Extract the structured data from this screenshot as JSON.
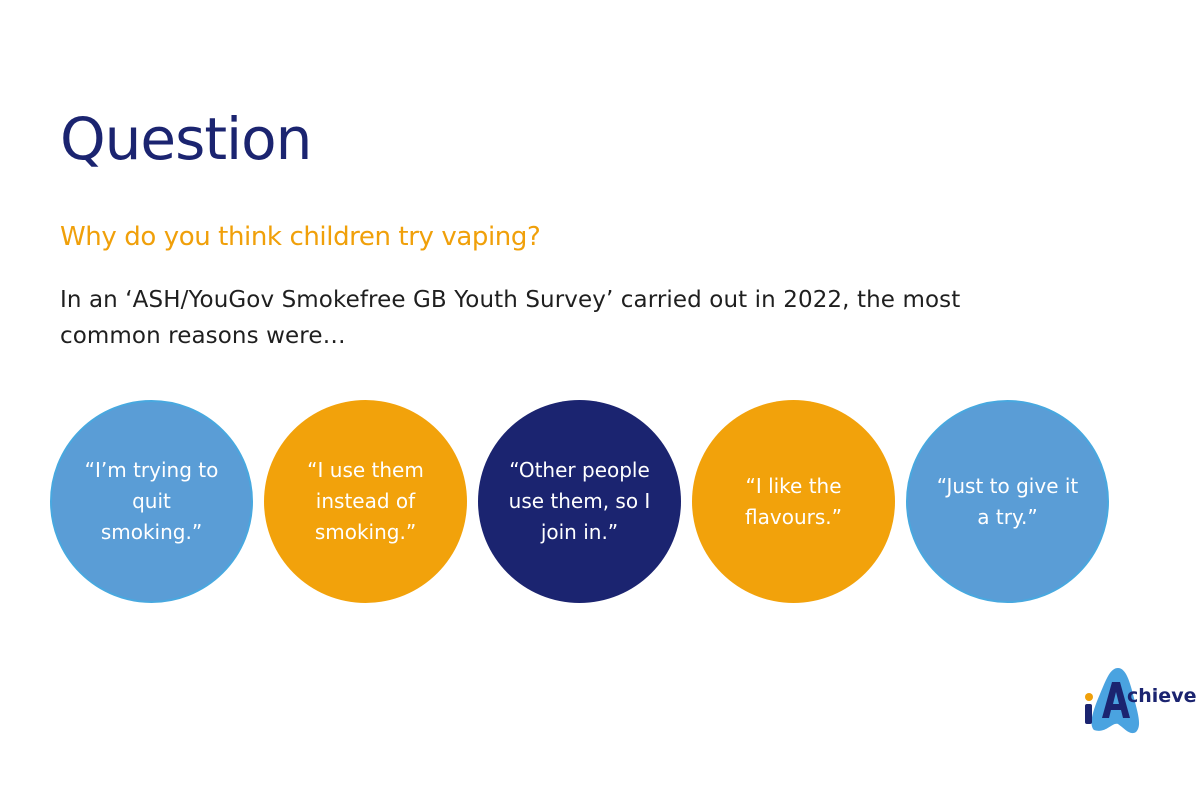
{
  "slide": {
    "title": "Question",
    "subtitle": "Why do you think children try vaping?",
    "body": "In an ‘ASH/YouGov Smokefree GB Youth Survey’ carried out in 2022, the most common reasons were…"
  },
  "reasons": [
    {
      "text": "“I’m trying to quit smoking.”",
      "color": "#5a9dd6"
    },
    {
      "text": "“I use them instead of smoking.”",
      "color": "#f2a20b"
    },
    {
      "text": "“Other people use them, so I join in.”",
      "color": "#1b2470"
    },
    {
      "text": "“I like the flavours.”",
      "color": "#f2a20b"
    },
    {
      "text": "“Just to give it a try.”",
      "color": "#5a9dd6"
    }
  ],
  "logo": {
    "text": "iAchieve",
    "colors": {
      "blue": "#4aa3e0",
      "navy": "#1b2470",
      "orange": "#f0a00a"
    }
  }
}
